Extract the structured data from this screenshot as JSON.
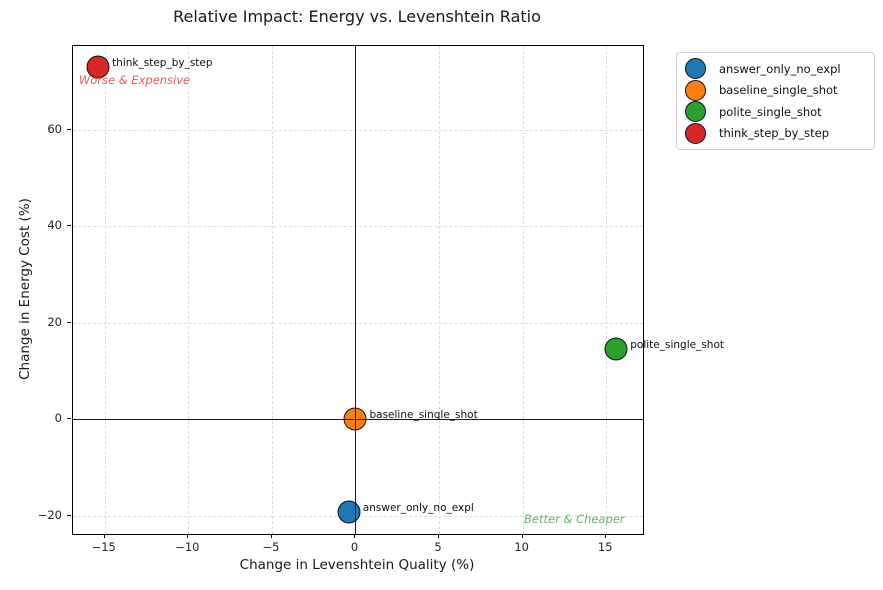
{
  "chart_data": {
    "type": "scatter",
    "title": "Relative Impact: Energy vs. Levenshtein Ratio",
    "xlabel": "Change in Levenshtein Quality (%)",
    "ylabel": "Change in Energy Cost (%)",
    "xlim": [
      -16.9,
      17.2
    ],
    "ylim": [
      -23.8,
      77.3
    ],
    "x_ticks": [
      -15,
      -10,
      -5,
      0,
      5,
      10,
      15
    ],
    "y_ticks": [
      -20,
      0,
      20,
      40,
      60
    ],
    "grid": "dashed",
    "zero_lines": true,
    "legend_position": "outside-upper-right",
    "points": [
      {
        "label": "answer_only_no_expl",
        "x": -0.4,
        "y": -19.2,
        "color": "#1f77b4"
      },
      {
        "label": "baseline_single_shot",
        "x": 0.0,
        "y": 0.0,
        "color": "#ff7f0e"
      },
      {
        "label": "polite_single_shot",
        "x": 15.6,
        "y": 14.6,
        "color": "#2ca02c"
      },
      {
        "label": "think_step_by_step",
        "x": -15.4,
        "y": 72.9,
        "color": "#d62728"
      }
    ],
    "annotations": [
      {
        "text": "Worse & Expensive",
        "x": -16.55,
        "y": 70.2,
        "align": "left",
        "color": "#e85c5c"
      },
      {
        "text": "Better & Cheaper",
        "x": 16.1,
        "y": -20.7,
        "align": "right",
        "color": "#66b56a"
      }
    ]
  }
}
